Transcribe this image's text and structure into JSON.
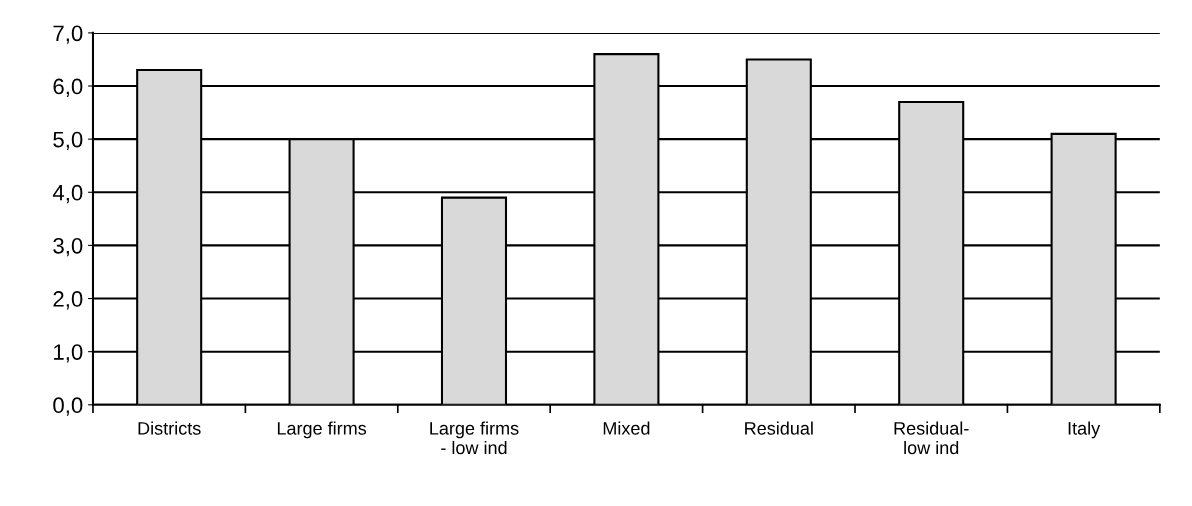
{
  "chart_data": {
    "type": "bar",
    "categories": [
      "Districts",
      "Large firms",
      "Large firms\n- low ind",
      "Mixed",
      "Residual",
      "Residual-\nlow ind",
      "Italy"
    ],
    "values": [
      6.3,
      5.0,
      3.9,
      6.6,
      6.5,
      5.7,
      5.1
    ],
    "color": "#d9d9d9",
    "ylim": [
      0,
      7
    ],
    "yticks": [
      {
        "value": 0,
        "label": "0,0"
      },
      {
        "value": 1,
        "label": "1,0"
      },
      {
        "value": 2,
        "label": "2,0"
      },
      {
        "value": 3,
        "label": "3,0"
      },
      {
        "value": 4,
        "label": "4,0"
      },
      {
        "value": 5,
        "label": "5,0"
      },
      {
        "value": 6,
        "label": "6,0"
      },
      {
        "value": 7,
        "label": "7,0"
      }
    ],
    "grid": "y"
  }
}
